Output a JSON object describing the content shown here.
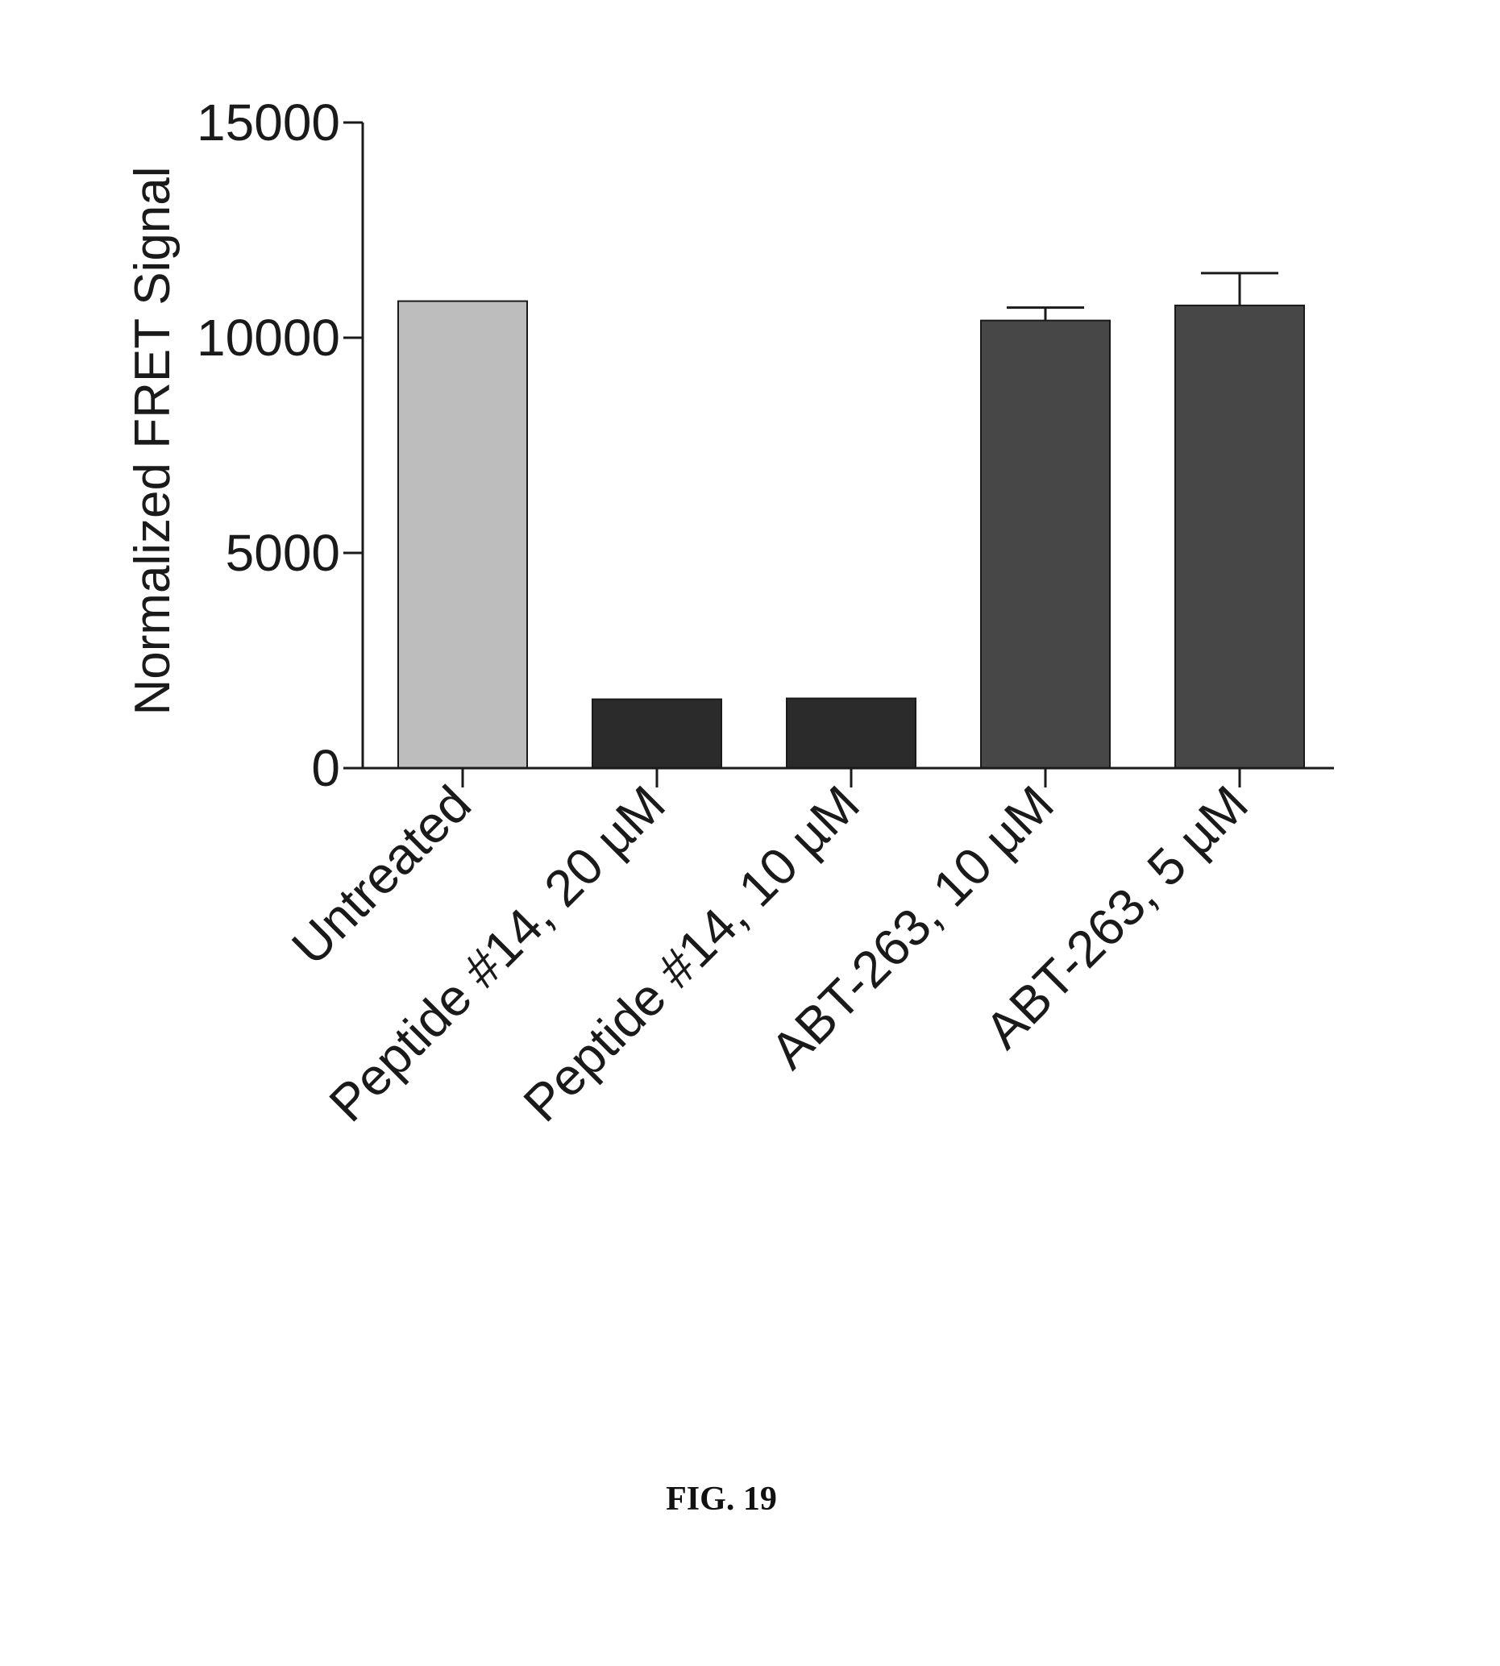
{
  "chart_data": {
    "type": "bar",
    "ylabel": "Normalized FRET Signal",
    "ylim": [
      0,
      15000
    ],
    "yticks": [
      0,
      5000,
      10000,
      15000
    ],
    "ytick_labels": [
      "0",
      "5000",
      "10000",
      "15000"
    ],
    "categories": [
      "Untreated",
      "Peptide #14, 20 µM",
      "Peptide #14, 10 µM",
      "ABT-263, 10 µM",
      "ABT-263, 5 µM"
    ],
    "values": [
      10850,
      1600,
      1620,
      10400,
      10750
    ],
    "error_upper": [
      0,
      0,
      0,
      300,
      750
    ],
    "bar_colors": [
      "#bdbdbd",
      "#2b2b2b",
      "#2b2b2b",
      "#474747",
      "#474747"
    ]
  },
  "caption": "FIG. 19"
}
